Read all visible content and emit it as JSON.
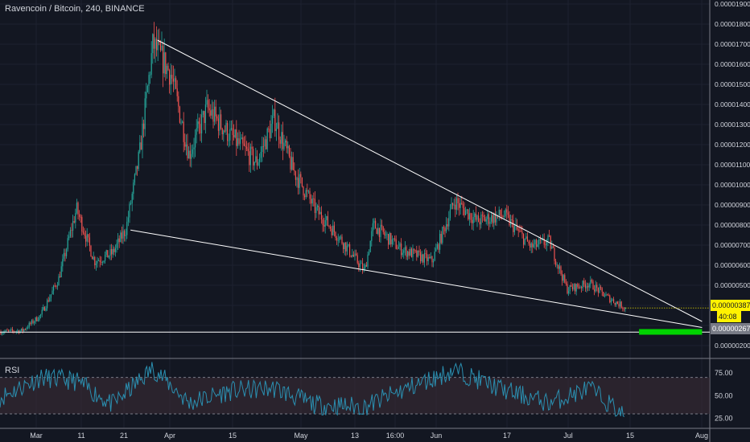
{
  "header": {
    "title": "Ravencoin / Bitcoin, 240, BINANCE"
  },
  "rsi_panel": {
    "label": "RSI"
  },
  "price_tags": {
    "current": "0.00000387",
    "countdown": "40:08",
    "support": "0.00000267"
  },
  "colors": {
    "background": "#131722",
    "grid": "#1e2230",
    "up": "#26a69a",
    "down": "#ef5350",
    "trendline": "#ffffff",
    "target": "#00d300",
    "rsi_line": "#2a8fb0",
    "rsi_band": "#3a2b36"
  },
  "chart_data": [
    {
      "type": "candlestick",
      "title": "Ravencoin / Bitcoin, 240, BINANCE",
      "x_ticks": [
        "Mar",
        "11",
        "21",
        "Apr",
        "15",
        "May",
        "13",
        "16:00",
        "Jun",
        "17",
        "Jul",
        "15",
        "Aug"
      ],
      "y_ticks": [
        "0.00000200",
        "0.00000300",
        "0.00000400",
        "0.00000500",
        "0.00000600",
        "0.00000700",
        "0.00000800",
        "0.00000900",
        "0.00001000",
        "0.00001100",
        "0.00001200",
        "0.00001300",
        "0.00001400",
        "0.00001500",
        "0.00001600",
        "0.00001700",
        "0.00001800",
        "0.00001900"
      ],
      "ylim": [
        1.6e-06,
        1.92e-05
      ],
      "price_path": [
        {
          "date": "2019-02-20",
          "price": 2.68e-06
        },
        {
          "date": "2019-02-25",
          "price": 2.75e-06
        },
        {
          "date": "2019-03-01",
          "price": 3.5e-06
        },
        {
          "date": "2019-03-05",
          "price": 5.3e-06
        },
        {
          "date": "2019-03-09",
          "price": 8.8e-06
        },
        {
          "date": "2019-03-13",
          "price": 6.2e-06
        },
        {
          "date": "2019-03-17",
          "price": 6.6e-06
        },
        {
          "date": "2019-03-20",
          "price": 7.8e-06
        },
        {
          "date": "2019-03-23",
          "price": 1.15e-05
        },
        {
          "date": "2019-03-26",
          "price": 1.7e-05
        },
        {
          "date": "2019-03-30",
          "price": 1.55e-05
        },
        {
          "date": "2019-04-03",
          "price": 1.15e-05
        },
        {
          "date": "2019-04-07",
          "price": 1.38e-05
        },
        {
          "date": "2019-04-12",
          "price": 1.25e-05
        },
        {
          "date": "2019-04-18",
          "price": 1.11e-05
        },
        {
          "date": "2019-04-22",
          "price": 1.33e-05
        },
        {
          "date": "2019-04-26",
          "price": 1.08e-05
        },
        {
          "date": "2019-05-01",
          "price": 8.8e-06
        },
        {
          "date": "2019-05-06",
          "price": 7.5e-06
        },
        {
          "date": "2019-05-12",
          "price": 5.7e-06
        },
        {
          "date": "2019-05-14",
          "price": 8e-06
        },
        {
          "date": "2019-05-20",
          "price": 6.8e-06
        },
        {
          "date": "2019-05-27",
          "price": 6.2e-06
        },
        {
          "date": "2019-06-01",
          "price": 9.2e-06
        },
        {
          "date": "2019-06-06",
          "price": 8.2e-06
        },
        {
          "date": "2019-06-12",
          "price": 8.5e-06
        },
        {
          "date": "2019-06-18",
          "price": 6.9e-06
        },
        {
          "date": "2019-06-22",
          "price": 7.2e-06
        },
        {
          "date": "2019-06-26",
          "price": 4.8e-06
        },
        {
          "date": "2019-07-01",
          "price": 5.1e-06
        },
        {
          "date": "2019-07-05",
          "price": 4.4e-06
        },
        {
          "date": "2019-07-09",
          "price": 3.87e-06
        }
      ],
      "trendlines": [
        {
          "from": {
            "date": "2019-03-27",
            "price": 1.72e-05
          },
          "to": {
            "date": "2019-07-26",
            "price": 3.2e-06
          }
        },
        {
          "from": {
            "date": "2019-03-21",
            "price": 7.75e-06
          },
          "to": {
            "date": "2019-07-26",
            "price": 2.9e-06
          }
        }
      ],
      "horizontal_line": {
        "price": 2.67e-06
      },
      "target_zone": {
        "from": "2019-07-12",
        "to": "2019-07-26",
        "price": 2.9e-06
      },
      "last_price": 3.87e-06
    },
    {
      "type": "line",
      "title": "RSI",
      "y_ticks": [
        "75.00",
        "50.00",
        "25.00"
      ],
      "ylim": [
        15,
        90
      ],
      "band": [
        30,
        70
      ],
      "x": [
        "2019-02-20",
        "2019-03-01",
        "2019-03-09",
        "2019-03-17",
        "2019-03-26",
        "2019-04-03",
        "2019-04-12",
        "2019-04-22",
        "2019-05-01",
        "2019-05-12",
        "2019-05-20",
        "2019-06-01",
        "2019-06-12",
        "2019-06-22",
        "2019-07-01",
        "2019-07-09"
      ],
      "values": [
        48,
        70,
        66,
        40,
        80,
        42,
        55,
        58,
        40,
        38,
        55,
        78,
        56,
        42,
        58,
        27
      ]
    }
  ]
}
